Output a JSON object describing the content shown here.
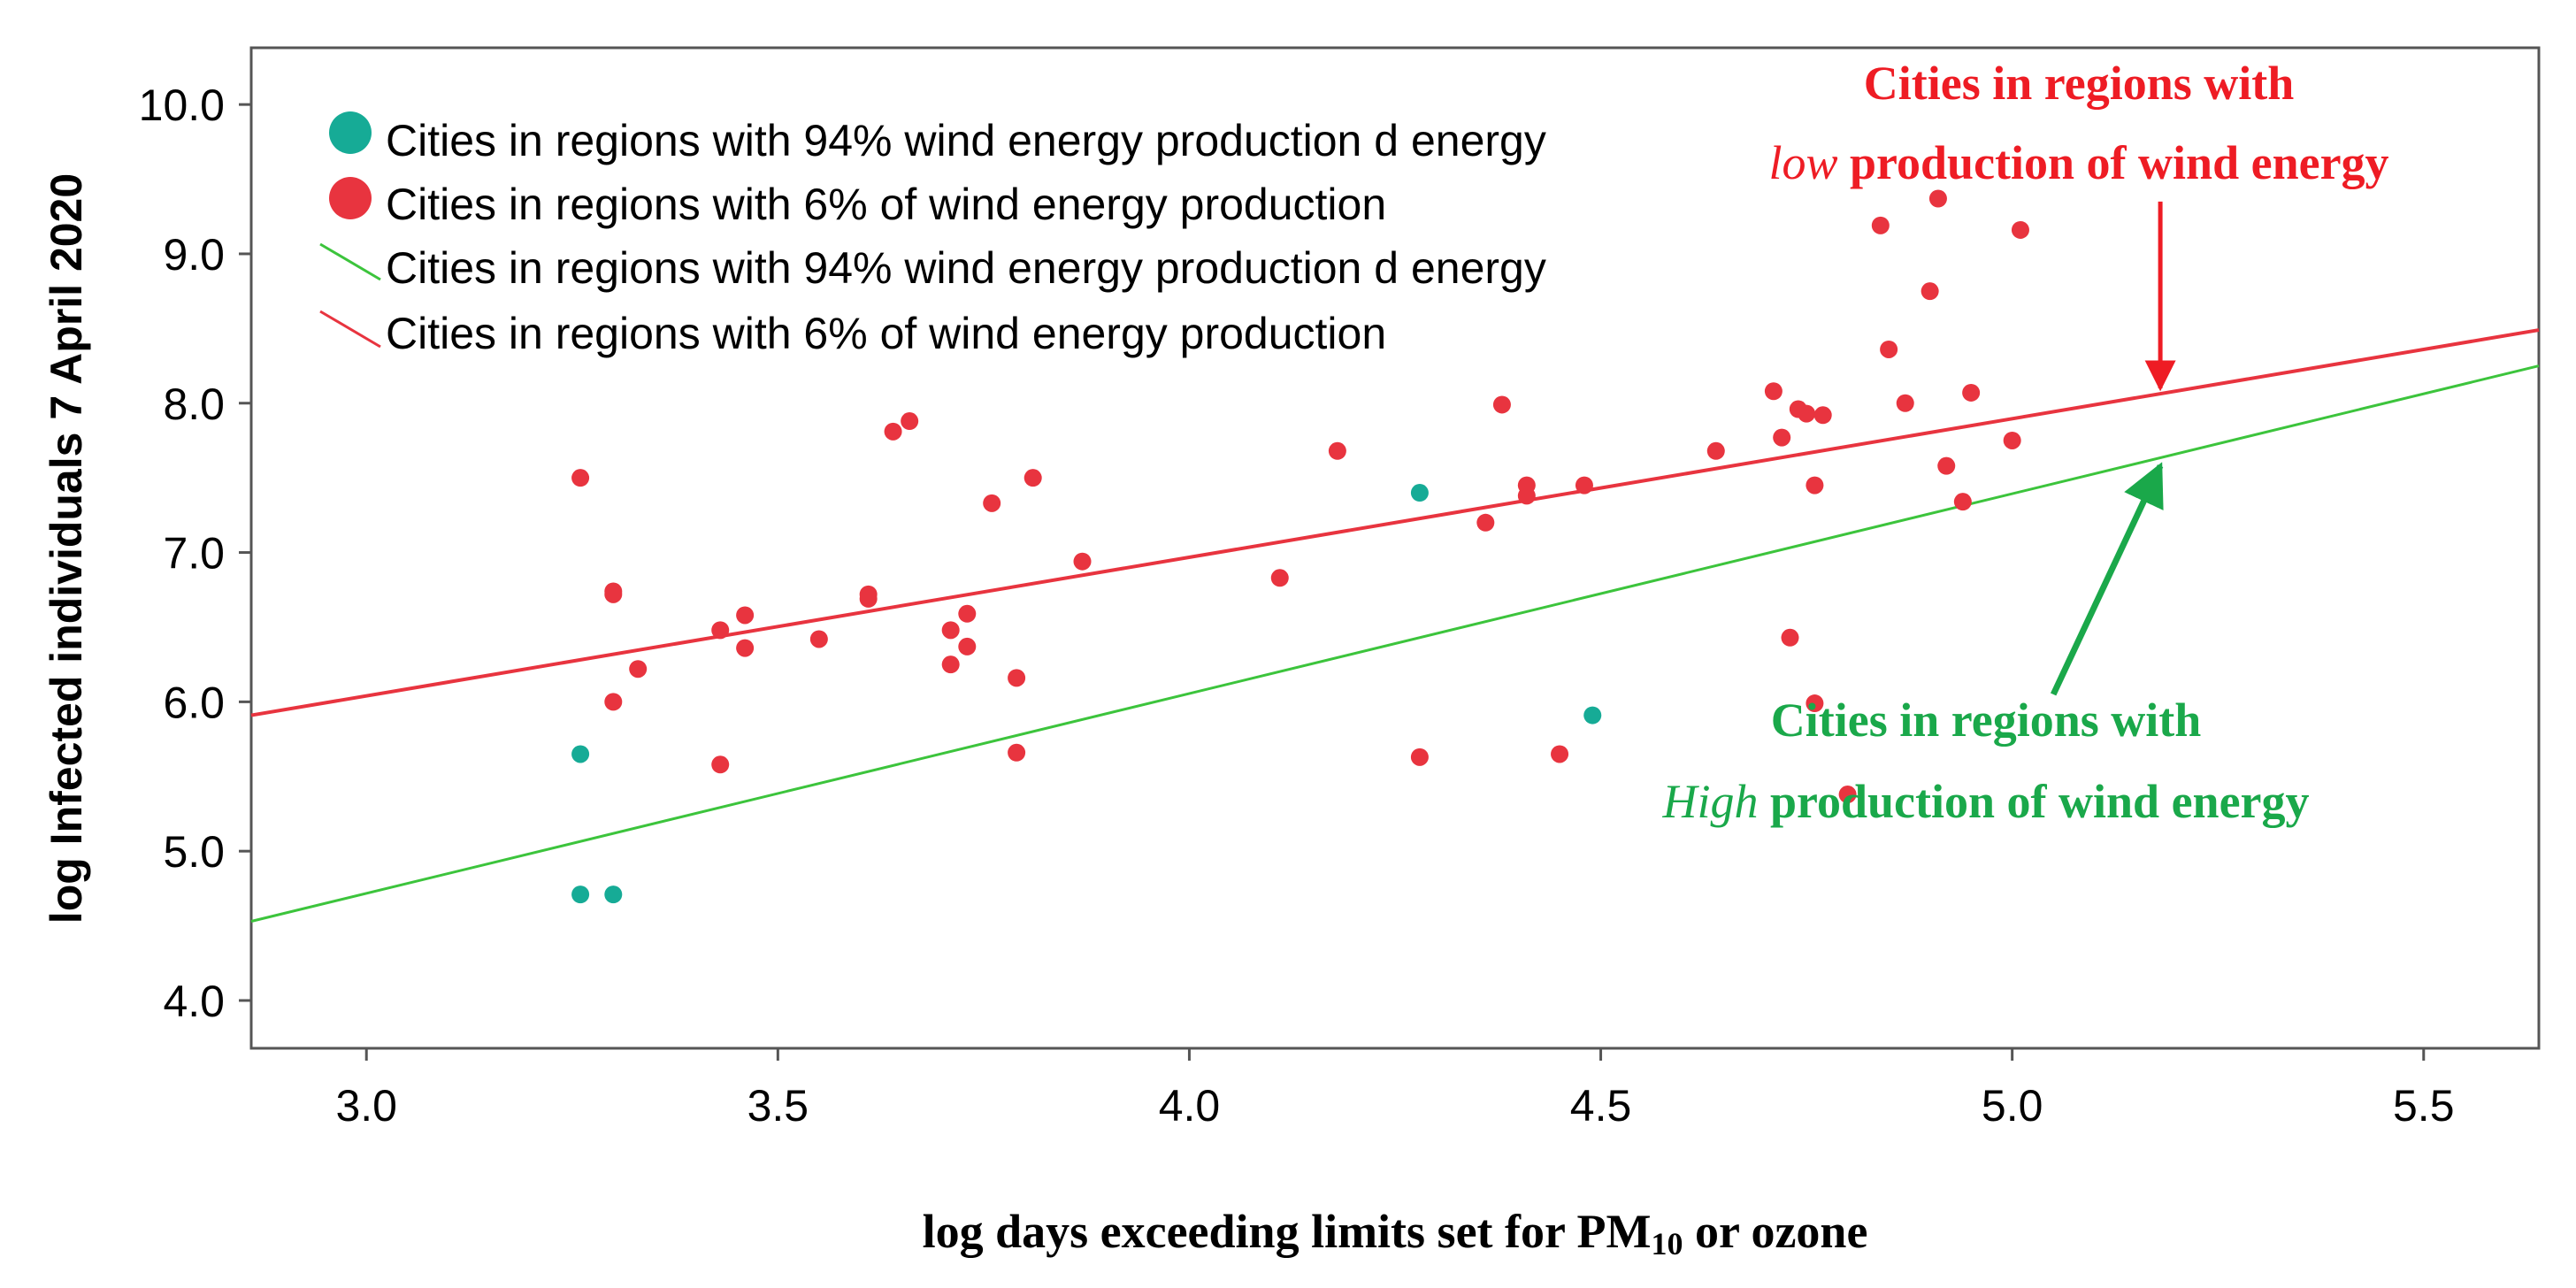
{
  "colors": {
    "low_wind": "#e8343f",
    "high_wind": "#16ab96",
    "low_wind_line": "#e8343f",
    "high_wind_line": "#3cc43c",
    "annotation_low": "#ee1c24",
    "annotation_high": "#1aa84a"
  },
  "chart_data": {
    "type": "scatter",
    "title": "",
    "xlabel": "log days exceeding limits set for PM",
    "xlabel_sub": "10",
    "xlabel_tail": " or ozone",
    "ylabel": "log Infected individuals 7 April 2020",
    "xlim": [
      2.86,
      5.64
    ],
    "ylim": [
      3.68,
      10.38
    ],
    "xticks": [
      3.0,
      3.5,
      4.0,
      4.5,
      5.0,
      5.5
    ],
    "xtick_labels": [
      "3.0",
      "3.5",
      "4.0",
      "4.5",
      "5.0",
      "5.5"
    ],
    "yticks": [
      4.0,
      5.0,
      6.0,
      7.0,
      8.0,
      9.0,
      10.0
    ],
    "ytick_labels": [
      "4.0",
      "5.0",
      "6.0",
      "7.0",
      "8.0",
      "9.0",
      "10.0"
    ],
    "legend_position": "top-left",
    "series": [
      {
        "name": "Cities in regions with 94% wind energy production d energy",
        "kind": "points",
        "color_key": "high_wind",
        "points": [
          [
            3.26,
            5.65
          ],
          [
            3.26,
            4.71
          ],
          [
            3.3,
            4.71
          ],
          [
            4.28,
            7.4
          ],
          [
            4.49,
            5.91
          ]
        ]
      },
      {
        "name": "Cities in regions with 6% of wind energy production",
        "kind": "points",
        "color_key": "low_wind",
        "points": [
          [
            3.26,
            7.5
          ],
          [
            3.3,
            6.74
          ],
          [
            3.3,
            6.72
          ],
          [
            3.3,
            6.0
          ],
          [
            3.33,
            6.22
          ],
          [
            3.43,
            6.48
          ],
          [
            3.43,
            5.58
          ],
          [
            3.46,
            6.58
          ],
          [
            3.46,
            6.36
          ],
          [
            3.55,
            6.42
          ],
          [
            3.61,
            6.72
          ],
          [
            3.61,
            6.69
          ],
          [
            3.64,
            7.81
          ],
          [
            3.66,
            7.88
          ],
          [
            3.71,
            6.48
          ],
          [
            3.71,
            6.25
          ],
          [
            3.73,
            6.59
          ],
          [
            3.73,
            6.37
          ],
          [
            3.76,
            7.33
          ],
          [
            3.79,
            6.16
          ],
          [
            3.79,
            5.66
          ],
          [
            3.81,
            7.5
          ],
          [
            3.87,
            6.94
          ],
          [
            4.11,
            6.83
          ],
          [
            4.18,
            7.68
          ],
          [
            4.28,
            5.63
          ],
          [
            4.36,
            7.2
          ],
          [
            4.38,
            7.99
          ],
          [
            4.41,
            7.45
          ],
          [
            4.41,
            7.38
          ],
          [
            4.45,
            5.65
          ],
          [
            4.48,
            7.45
          ],
          [
            4.64,
            7.68
          ],
          [
            4.71,
            8.08
          ],
          [
            4.72,
            7.77
          ],
          [
            4.73,
            6.43
          ],
          [
            4.74,
            7.96
          ],
          [
            4.75,
            7.93
          ],
          [
            4.76,
            7.45
          ],
          [
            4.76,
            5.99
          ],
          [
            4.77,
            7.92
          ],
          [
            4.8,
            5.38
          ],
          [
            4.84,
            9.19
          ],
          [
            4.85,
            8.36
          ],
          [
            4.87,
            8.0
          ],
          [
            4.9,
            8.75
          ],
          [
            4.91,
            9.37
          ],
          [
            4.92,
            7.58
          ],
          [
            4.94,
            7.34
          ],
          [
            4.95,
            8.07
          ],
          [
            5.0,
            7.75
          ],
          [
            5.01,
            9.16
          ]
        ]
      },
      {
        "name": "Cities in regions with 94% wind energy production d energy",
        "kind": "line",
        "color_key": "high_wind_line",
        "x": [
          2.86,
          5.64
        ],
        "y": [
          4.53,
          8.25
        ]
      },
      {
        "name": "Cities in regions with 6% of wind energy production",
        "kind": "line",
        "color_key": "low_wind_line",
        "x": [
          2.86,
          5.64
        ],
        "y": [
          5.91,
          8.49
        ]
      }
    ],
    "annotations": {
      "low": {
        "line1": "Cities in regions with",
        "line2_italic": "low",
        "line2_rest": " production of wind energy",
        "arrow_from": [
          5.18,
          9.35
        ],
        "arrow_to": [
          5.18,
          8.1
        ]
      },
      "high": {
        "line1": "Cities in regions with",
        "line2_italic": "High",
        "line2_rest": " production of wind energy",
        "arrow_from": [
          5.05,
          6.05
        ],
        "arrow_to": [
          5.18,
          7.58
        ]
      }
    }
  }
}
